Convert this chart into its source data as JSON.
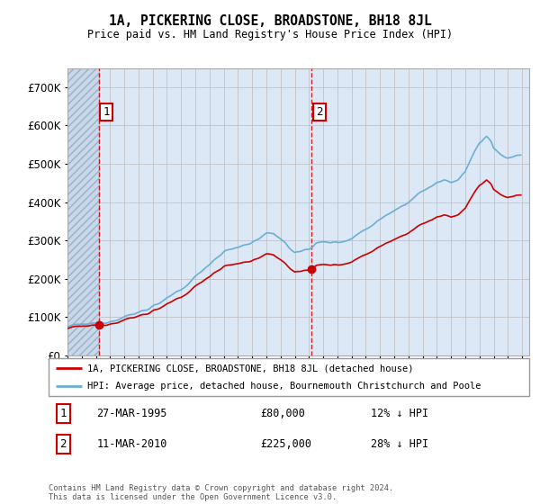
{
  "title": "1A, PICKERING CLOSE, BROADSTONE, BH18 8JL",
  "subtitle": "Price paid vs. HM Land Registry's House Price Index (HPI)",
  "ylim": [
    0,
    750000
  ],
  "yticks": [
    0,
    100000,
    200000,
    300000,
    400000,
    500000,
    600000,
    700000
  ],
  "ytick_labels": [
    "£0",
    "£100K",
    "£200K",
    "£300K",
    "£400K",
    "£500K",
    "£600K",
    "£700K"
  ],
  "hpi_color": "#6baed6",
  "price_color": "#cc0000",
  "sale1_date": 1995.21,
  "sale1_price": 80000,
  "sale2_date": 2010.19,
  "sale2_price": 225000,
  "legend_line1": "1A, PICKERING CLOSE, BROADSTONE, BH18 8JL (detached house)",
  "legend_line2": "HPI: Average price, detached house, Bournemouth Christchurch and Poole",
  "annotation1_date": "27-MAR-1995",
  "annotation1_price": "£80,000",
  "annotation1_hpi": "12% ↓ HPI",
  "annotation2_date": "11-MAR-2010",
  "annotation2_price": "£225,000",
  "annotation2_hpi": "28% ↓ HPI",
  "footer": "Contains HM Land Registry data © Crown copyright and database right 2024.\nThis data is licensed under the Open Government Licence v3.0.",
  "bg_color": "#dce8f5",
  "hatch_bg": "#c8d8e8",
  "grid_color": "#bbbbbb",
  "xmin": 1993.0,
  "xmax": 2025.5
}
